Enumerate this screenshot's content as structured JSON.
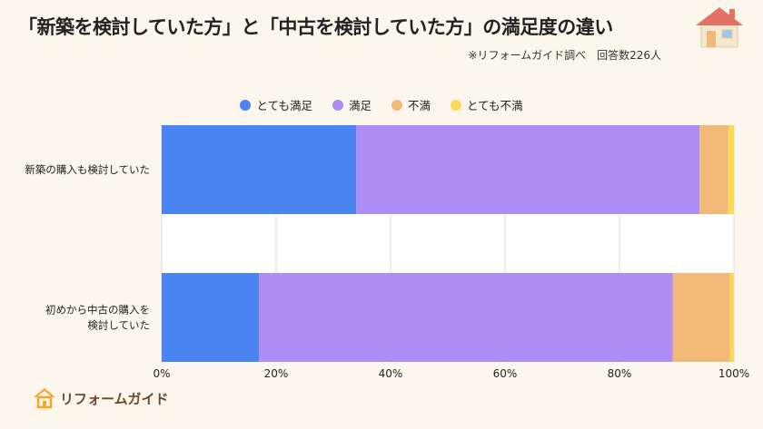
{
  "header": {
    "title": "「新築を検討していた方」と「中古を検討していた方」の満足度の違い",
    "source": "※リフォームガイド調べ　回答数226人"
  },
  "logo": {
    "text": "リフォームガイド"
  },
  "colors": {
    "very_satisfied": "#4a84f0",
    "satisfied": "#ad8df3",
    "dissatisfied": "#f1b977",
    "very_dissatisfied": "#fbd95a"
  },
  "chart_data": {
    "type": "bar",
    "orientation": "horizontal",
    "stacked": true,
    "categories": [
      "新築の購入も検討していた",
      "初めから中古の購入を検討していた"
    ],
    "category_lines": [
      [
        "新築の購入も検討していた"
      ],
      [
        "初めから中古の購入を",
        "検討していた"
      ]
    ],
    "series": [
      {
        "name": "とても満足",
        "values": [
          34,
          17
        ]
      },
      {
        "name": "満足",
        "values": [
          60,
          72.3
        ]
      },
      {
        "name": "不満",
        "values": [
          5,
          10
        ]
      },
      {
        "name": "とても不満",
        "values": [
          1,
          0.7
        ]
      }
    ],
    "xlim": [
      0,
      100
    ],
    "xticks": [
      "0%",
      "20%",
      "40%",
      "60%",
      "80%",
      "100%"
    ],
    "grid": true,
    "legend": "top"
  }
}
